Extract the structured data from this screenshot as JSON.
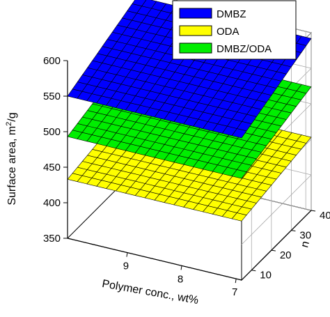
{
  "chart_data": {
    "type": "surface3d",
    "xlabel": "Polymer conc., wt%",
    "ylabel": "n",
    "zlabel_main": "Surface area, m",
    "zlabel_sup": "2",
    "zlabel_end": "/g",
    "x_ticks": [
      "9",
      "8",
      "7"
    ],
    "x_tick_values": [
      9,
      8,
      7
    ],
    "xlim": [
      6.9,
      10.1
    ],
    "y_ticks": [
      "10",
      "20",
      "30",
      "40"
    ],
    "y_tick_values": [
      10,
      20,
      30,
      40
    ],
    "ylim": [
      5,
      40
    ],
    "z_ticks": [
      "350",
      "400",
      "450",
      "500",
      "550",
      "600"
    ],
    "z_tick_values": [
      350,
      400,
      450,
      500,
      550,
      600
    ],
    "zlim": [
      350,
      600
    ],
    "grid": true,
    "legend_position": "top-right",
    "series": [
      {
        "name": "DMBZ",
        "color": "#0000ff",
        "corners": {
          "x10_y5": 550,
          "x7_y5": 550,
          "x10_y40": 592,
          "x7_y40": 592
        }
      },
      {
        "name": "ODA",
        "color": "#ffff00",
        "corners": {
          "x10_y5": 433,
          "x7_y5": 433,
          "x10_y40": 453,
          "x7_y40": 453
        }
      },
      {
        "name": "DMBZ/ODA",
        "color": "#00ee00",
        "corners": {
          "x10_y5": 493,
          "x7_y5": 493,
          "x10_y40": 524,
          "x7_y40": 524
        }
      }
    ]
  }
}
